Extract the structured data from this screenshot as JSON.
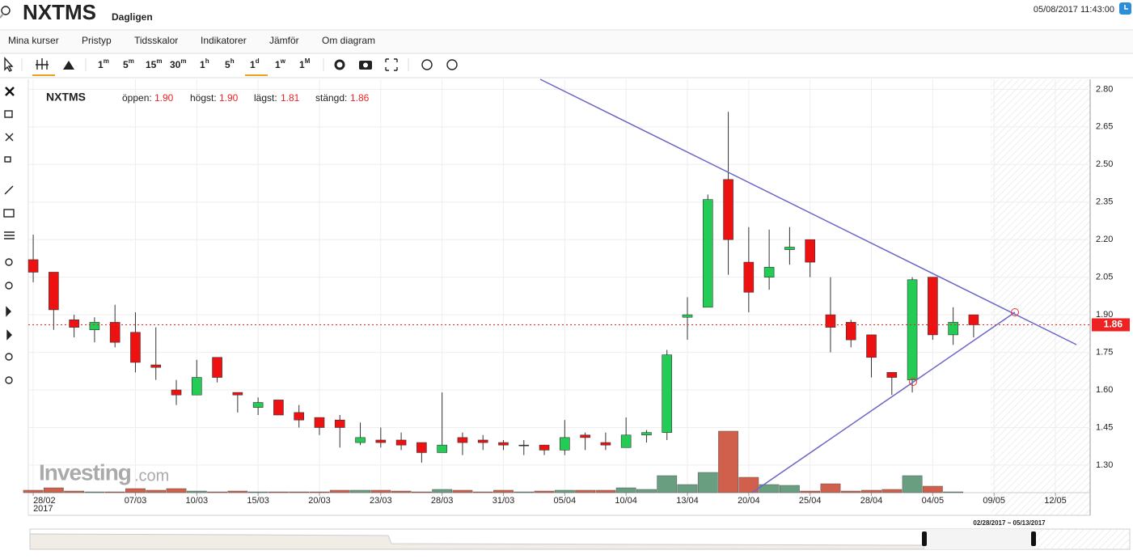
{
  "header": {
    "symbol": "NXTMS",
    "interval": "Dagligen",
    "datetime": "05/08/2017 11:43:00"
  },
  "menu": [
    "Mina kurser",
    "Pristyp",
    "Tidsskalor",
    "Indikatorer",
    "Jämför",
    "Om diagram"
  ],
  "toolbar": {
    "timeframes": [
      {
        "n": "1",
        "u": "m"
      },
      {
        "n": "5",
        "u": "m"
      },
      {
        "n": "15",
        "u": "m"
      },
      {
        "n": "30",
        "u": "m"
      },
      {
        "n": "1",
        "u": "h"
      },
      {
        "n": "5",
        "u": "h"
      },
      {
        "n": "1",
        "u": "d"
      },
      {
        "n": "1",
        "u": "w"
      },
      {
        "n": "1",
        "u": "M"
      }
    ]
  },
  "legend": {
    "symbol": "NXTMS",
    "items": [
      {
        "label": "öppen:",
        "value": "1.90"
      },
      {
        "label": "högst:",
        "value": "1.90"
      },
      {
        "label": "lägst:",
        "value": "1.81"
      },
      {
        "label": "stängd:",
        "value": "1.86"
      }
    ]
  },
  "logo": {
    "main": "Investing",
    "suffix": ".com"
  },
  "navigator": {
    "range": "02/28/2017 ~ 05/13/2017"
  },
  "chart_data": {
    "type": "candlestick",
    "open": [
      2.12,
      2.07,
      1.88,
      1.84,
      1.87,
      1.83,
      1.7,
      1.6,
      1.58,
      1.73,
      1.59,
      1.53,
      1.56,
      1.51,
      1.49,
      1.48,
      1.39,
      1.4,
      1.4,
      1.39,
      1.35,
      1.41,
      1.4,
      1.39,
      1.38,
      1.38,
      1.36,
      1.42,
      1.39,
      1.37,
      1.42,
      1.43,
      1.89,
      1.93,
      2.44,
      2.11,
      2.05,
      2.16,
      2.2,
      1.9,
      1.87,
      1.82,
      1.67,
      1.64,
      2.05,
      1.82,
      1.9
    ],
    "high": [
      2.22,
      2.07,
      1.9,
      1.89,
      1.94,
      1.91,
      1.85,
      1.64,
      1.72,
      1.73,
      1.59,
      1.57,
      1.56,
      1.54,
      1.49,
      1.5,
      1.47,
      1.45,
      1.43,
      1.39,
      1.59,
      1.43,
      1.42,
      1.4,
      1.4,
      1.38,
      1.48,
      1.43,
      1.43,
      1.49,
      1.44,
      1.76,
      1.97,
      2.38,
      2.71,
      2.25,
      2.24,
      2.25,
      2.2,
      2.05,
      1.88,
      1.82,
      1.67,
      2.05,
      2.05,
      1.93,
      1.9
    ],
    "low": [
      2.03,
      1.84,
      1.81,
      1.79,
      1.77,
      1.67,
      1.64,
      1.54,
      1.58,
      1.63,
      1.51,
      1.5,
      1.5,
      1.45,
      1.42,
      1.37,
      1.38,
      1.37,
      1.36,
      1.31,
      1.35,
      1.34,
      1.36,
      1.36,
      1.34,
      1.34,
      1.34,
      1.36,
      1.36,
      1.37,
      1.39,
      1.4,
      1.8,
      1.93,
      2.06,
      1.91,
      2.0,
      2.1,
      2.05,
      1.75,
      1.77,
      1.65,
      1.58,
      1.59,
      1.8,
      1.78,
      1.81
    ],
    "close": [
      2.07,
      1.92,
      1.85,
      1.87,
      1.79,
      1.71,
      1.69,
      1.58,
      1.65,
      1.65,
      1.58,
      1.55,
      1.5,
      1.48,
      1.45,
      1.45,
      1.41,
      1.39,
      1.38,
      1.35,
      1.38,
      1.39,
      1.39,
      1.38,
      1.38,
      1.36,
      1.41,
      1.41,
      1.38,
      1.42,
      1.43,
      1.74,
      1.9,
      2.36,
      2.2,
      1.99,
      2.09,
      2.17,
      2.11,
      1.85,
      1.8,
      1.73,
      1.65,
      2.04,
      1.82,
      1.87,
      1.86
    ],
    "volume": [
      3,
      6,
      2,
      1,
      1,
      5,
      3,
      5,
      2,
      1,
      2,
      1,
      1,
      1,
      1,
      3,
      3,
      3,
      2,
      1,
      4,
      3,
      1,
      3,
      1,
      2,
      3,
      3,
      3,
      6,
      4,
      21,
      10,
      25,
      76,
      19,
      10,
      9,
      2,
      11,
      2,
      3,
      4,
      21,
      8,
      1,
      0
    ],
    "up_color": "#22cc55",
    "down_color": "#ee1111",
    "up_volume_color": "#6a9e80",
    "down_volume_color": "#d0604c",
    "last_price": {
      "value": 1.86,
      "label": "1.86",
      "color": "#ee2222"
    },
    "xlim": [
      -0.24,
      51.7
    ],
    "xticks": [
      {
        "value": 0,
        "label": "28/02"
      },
      {
        "value": 5,
        "label": "07/03"
      },
      {
        "value": 8,
        "label": "10/03"
      },
      {
        "value": 11,
        "label": "15/03"
      },
      {
        "value": 14,
        "label": "20/03"
      },
      {
        "value": 17,
        "label": "23/03"
      },
      {
        "value": 20,
        "label": "28/03"
      },
      {
        "value": 23,
        "label": "31/03"
      },
      {
        "value": 26,
        "label": "05/04"
      },
      {
        "value": 29,
        "label": "10/04"
      },
      {
        "value": 32,
        "label": "13/04"
      },
      {
        "value": 35,
        "label": "20/04"
      },
      {
        "value": 38,
        "label": "25/04"
      },
      {
        "value": 41,
        "label": "28/04"
      },
      {
        "value": 44,
        "label": "04/05"
      },
      {
        "value": 47,
        "label": "09/05"
      },
      {
        "value": 50,
        "label": "12/05"
      }
    ],
    "year_label": "2017",
    "ylim": [
      1.19,
      2.84
    ],
    "yticks": [
      {
        "value": 2.8,
        "label": "2.80"
      },
      {
        "value": 2.65,
        "label": "2.65"
      },
      {
        "value": 2.5,
        "label": "2.50"
      },
      {
        "value": 2.35,
        "label": "2.35"
      },
      {
        "value": 2.2,
        "label": "2.20"
      },
      {
        "value": 2.05,
        "label": "2.05"
      },
      {
        "value": 1.9,
        "label": "1.90"
      },
      {
        "value": 1.75,
        "label": "1.75"
      },
      {
        "value": 1.6,
        "label": "1.60"
      },
      {
        "value": 1.45,
        "label": "1.45"
      },
      {
        "value": 1.3,
        "label": "1.30"
      }
    ],
    "grid": true
  }
}
